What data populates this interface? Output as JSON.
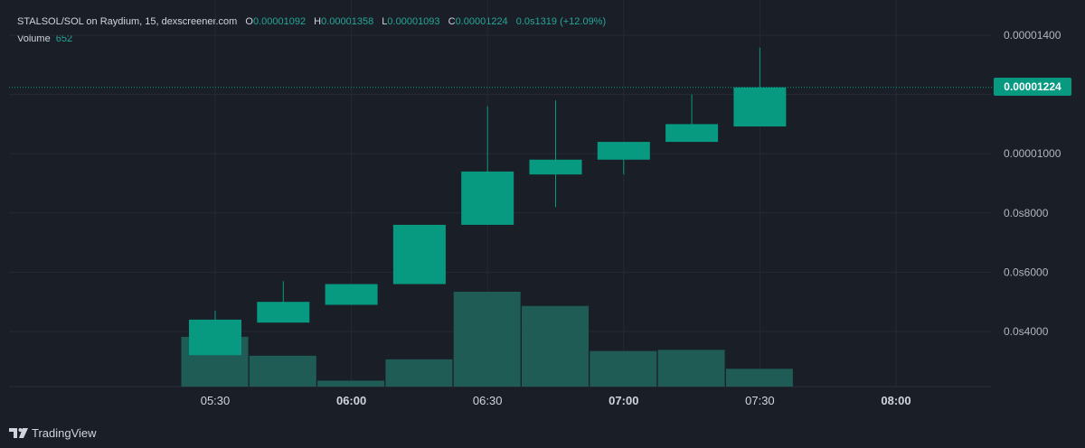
{
  "header": {
    "pair": "STALSOL/SOL on Raydium, 15, dexscreener.com",
    "o_label": "O",
    "o_value": "0.00001092",
    "h_label": "H",
    "h_value": "0.00001358",
    "l_label": "L",
    "l_value": "0.00001093",
    "c_label": "C",
    "c_value": "0.00001224",
    "change": "0.0s1319 (+12.09%)"
  },
  "volume": {
    "label": "Volume",
    "value": "652"
  },
  "last_price_tag": "0.00001224",
  "footer": {
    "brand": "TradingView",
    "logo_icon": "tradingview-logo-icon"
  },
  "colors": {
    "up": "#089981",
    "volume": "#1e5c55",
    "grid": "#262a34",
    "background": "#1a1e27",
    "text": "#d1d4dc"
  },
  "chart_data": {
    "type": "candlestick",
    "x_tick_labels": [
      "05:30",
      "06:00",
      "06:30",
      "07:00",
      "07:30",
      "08:00"
    ],
    "y_tick_labels": [
      "0.00001400",
      "0.00001000",
      "0.0s8000",
      "0.0s6000",
      "0.0s4000"
    ],
    "ylim": [
      2.6e-06,
      1.45e-05
    ],
    "grid": true,
    "candles": [
      {
        "time": "05:30",
        "open": 3.2e-06,
        "high": 4.7e-06,
        "low": 3.2e-06,
        "close": 4.4e-06
      },
      {
        "time": "05:45",
        "open": 4.3e-06,
        "high": 5.7e-06,
        "low": 4.3e-06,
        "close": 5e-06
      },
      {
        "time": "06:00",
        "open": 4.9e-06,
        "high": 5.6e-06,
        "low": 4.9e-06,
        "close": 5.6e-06
      },
      {
        "time": "06:15",
        "open": 5.6e-06,
        "high": 7.6e-06,
        "low": 5.6e-06,
        "close": 7.6e-06
      },
      {
        "time": "06:30",
        "open": 7.6e-06,
        "high": 1.16e-05,
        "low": 7.6e-06,
        "close": 9.4e-06
      },
      {
        "time": "06:45",
        "open": 9.3e-06,
        "high": 1.18e-05,
        "low": 8.2e-06,
        "close": 9.8e-06
      },
      {
        "time": "07:00",
        "open": 9.8e-06,
        "high": 1.04e-05,
        "low": 9.3e-06,
        "close": 1.04e-05
      },
      {
        "time": "07:15",
        "open": 1.04e-05,
        "high": 1.2e-05,
        "low": 1.04e-05,
        "close": 1.1e-05
      },
      {
        "time": "07:30",
        "open": 1.092e-05,
        "high": 1.358e-05,
        "low": 1.093e-05,
        "close": 1.224e-05
      }
    ],
    "volume_series": [
      42,
      26,
      5,
      23,
      80,
      68,
      30,
      31,
      15
    ]
  }
}
